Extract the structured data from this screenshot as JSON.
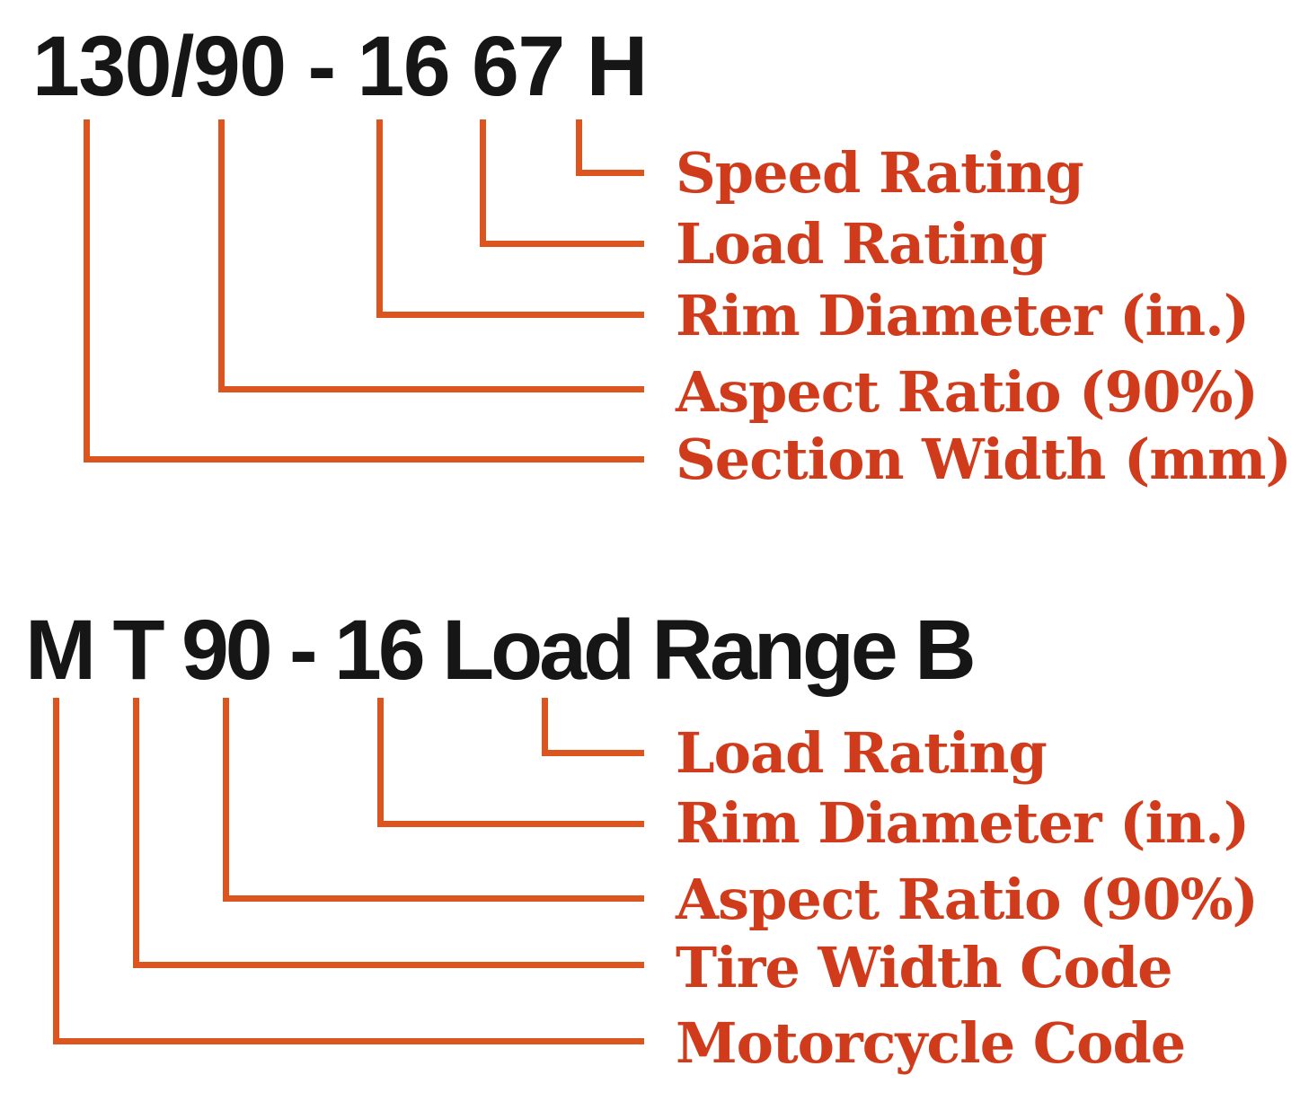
{
  "figure": {
    "background_color": "#ffffff",
    "headline_color": "#161616",
    "label_color": "#d03b1b",
    "line_color": "#dc541e"
  },
  "sections": [
    {
      "headline": "130/90 - 16 67 H",
      "labels": [
        {
          "text": "Speed Rating",
          "token": "H"
        },
        {
          "text": "Load Rating",
          "token": "67"
        },
        {
          "text": "Rim Diameter (in.)",
          "token": "16"
        },
        {
          "text": "Aspect Ratio (90%)",
          "token": "90"
        },
        {
          "text": "Section Width (mm)",
          "token": "130"
        }
      ]
    },
    {
      "headline": "M T 90 - 16 Load Range B",
      "labels": [
        {
          "text": "Load Rating",
          "token": "Load Range B"
        },
        {
          "text": "Rim Diameter (in.)",
          "token": "16"
        },
        {
          "text": "Aspect Ratio (90%)",
          "token": "90"
        },
        {
          "text": "Tire Width Code",
          "token": "T"
        },
        {
          "text": "Motorcycle Code",
          "token": "M"
        }
      ]
    }
  ]
}
